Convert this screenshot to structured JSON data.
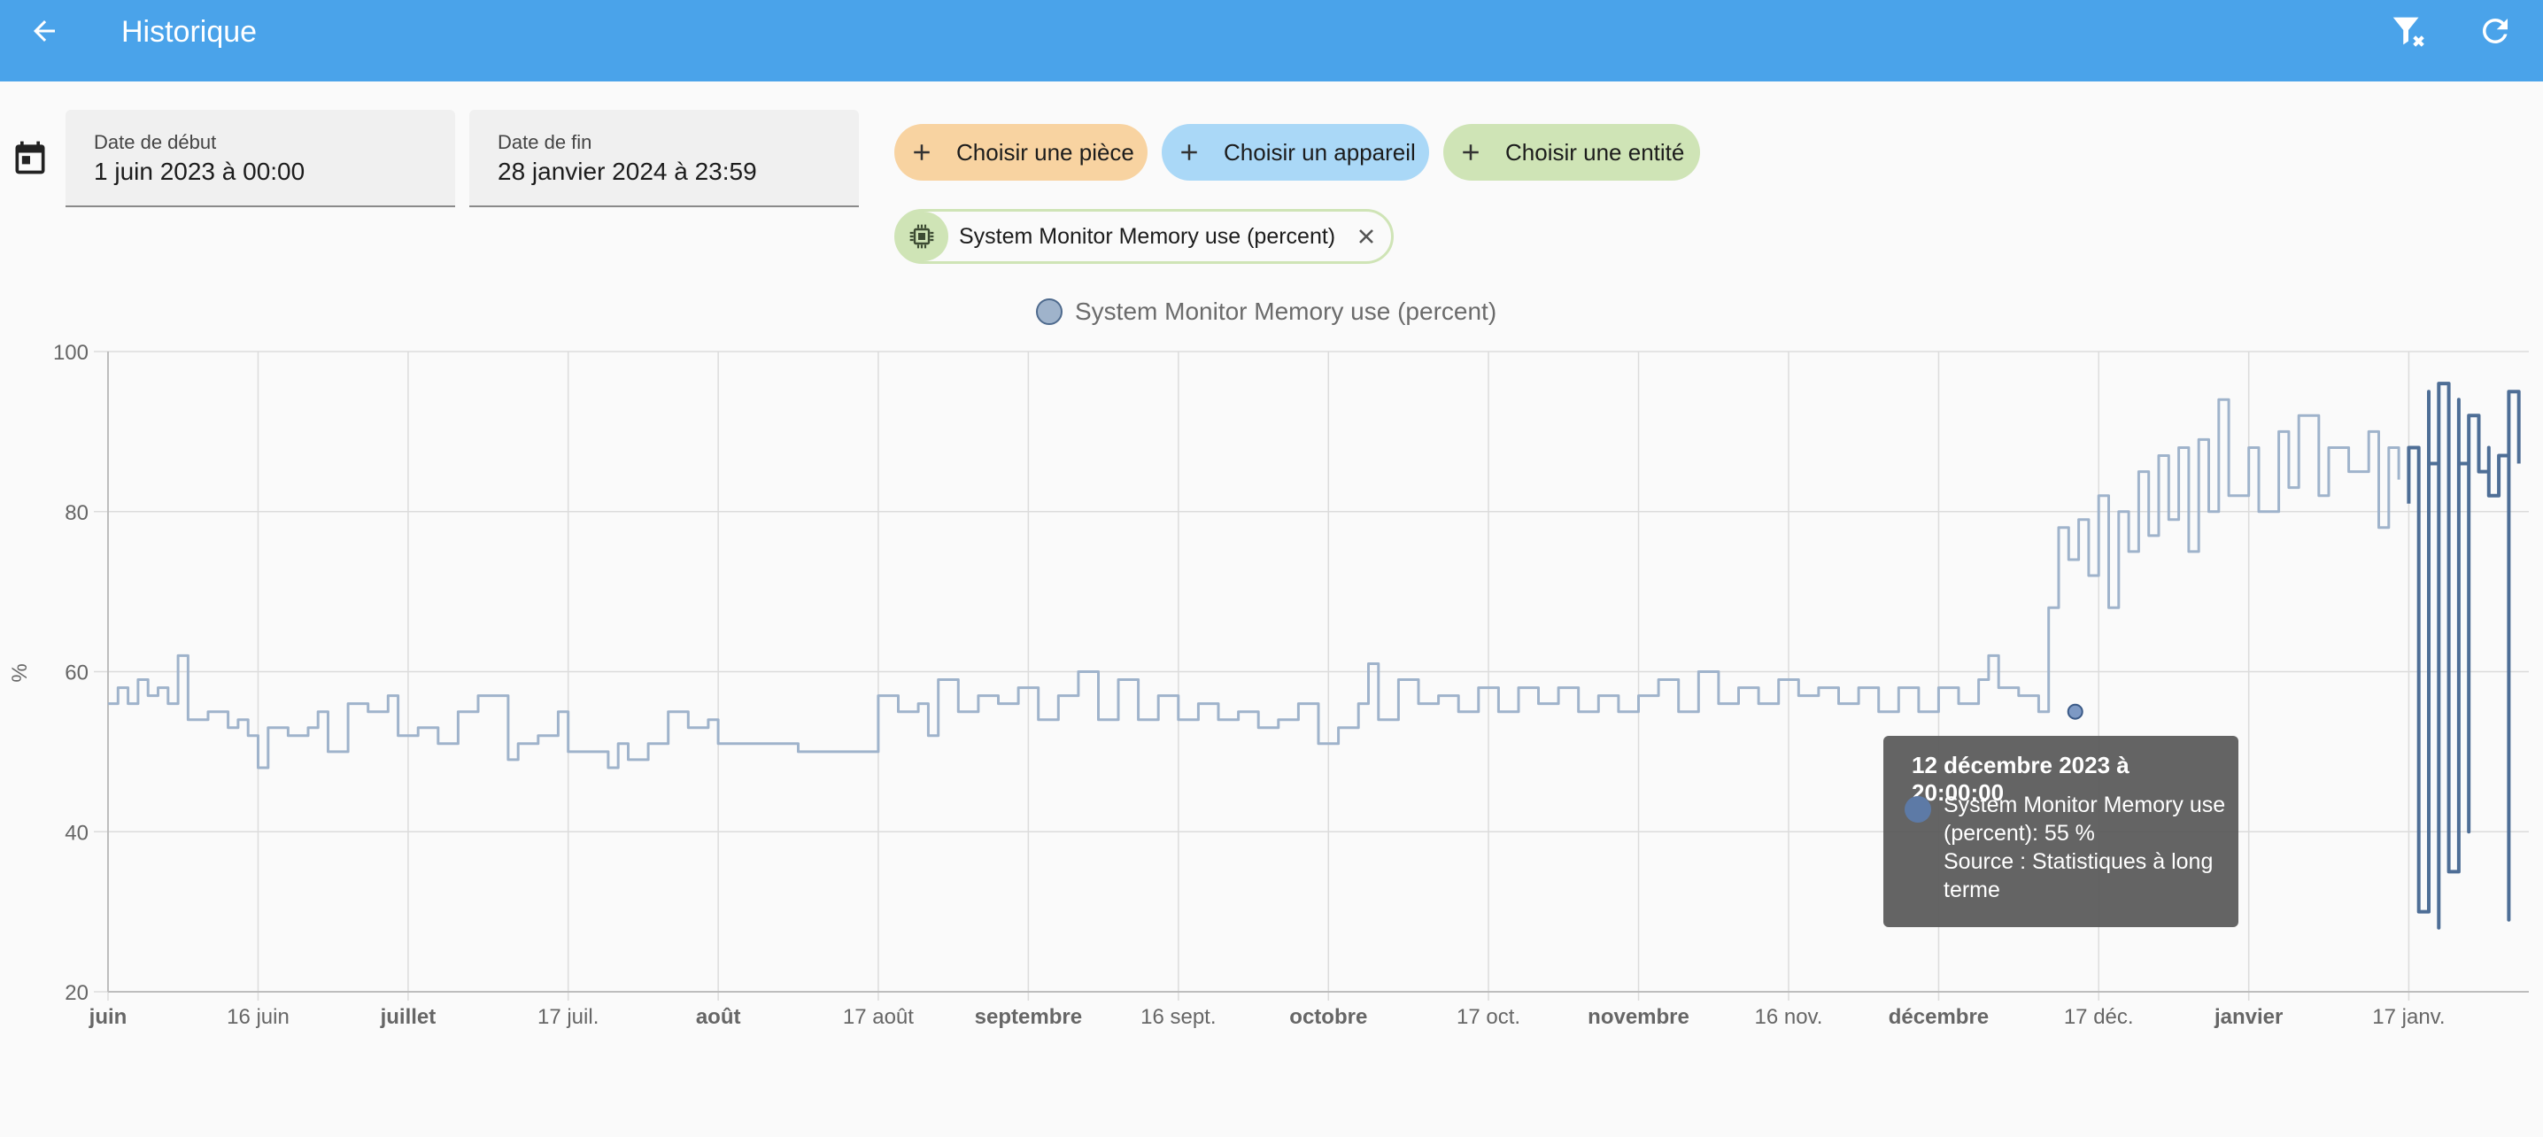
{
  "app": {
    "title": "Historique",
    "accent_color": "#4aa3ea",
    "icons": {
      "back": "arrow-left-icon",
      "clear_filter": "filter-remove-icon",
      "refresh": "refresh-icon",
      "calendar": "calendar-icon"
    }
  },
  "filters": {
    "start": {
      "label": "Date de début",
      "value": "1 juin 2023 à 00:00"
    },
    "end": {
      "label": "Date de fin",
      "value": "28 janvier 2024 à 23:59"
    },
    "pickers": {
      "room": "Choisir une pièce",
      "device": "Choisir un appareil",
      "entity": "Choisir une entité"
    },
    "selected_entity": {
      "label": "System Monitor Memory use (percent)",
      "icon": "chip-icon"
    }
  },
  "chart_data": {
    "type": "line",
    "legend": [
      "System Monitor Memory use (percent)"
    ],
    "legend_position": "top-center",
    "ylabel": "%",
    "ylim": [
      20,
      100
    ],
    "yticks": [
      20,
      40,
      60,
      80,
      100
    ],
    "xlim": [
      "2023-06-01",
      "2024-01-28"
    ],
    "grid": true,
    "xticks": [
      {
        "date": "2023-06-01",
        "label": "juin",
        "bold": true
      },
      {
        "date": "2023-06-16",
        "label": "16 juin",
        "bold": false
      },
      {
        "date": "2023-07-01",
        "label": "juillet",
        "bold": true
      },
      {
        "date": "2023-07-17",
        "label": "17 juil.",
        "bold": false
      },
      {
        "date": "2023-08-01",
        "label": "août",
        "bold": true
      },
      {
        "date": "2023-08-17",
        "label": "17 août",
        "bold": false
      },
      {
        "date": "2023-09-01",
        "label": "septembre",
        "bold": true
      },
      {
        "date": "2023-09-16",
        "label": "16 sept.",
        "bold": false
      },
      {
        "date": "2023-10-01",
        "label": "octobre",
        "bold": true
      },
      {
        "date": "2023-10-17",
        "label": "17 oct.",
        "bold": false
      },
      {
        "date": "2023-11-01",
        "label": "novembre",
        "bold": true
      },
      {
        "date": "2023-11-16",
        "label": "16 nov.",
        "bold": false
      },
      {
        "date": "2023-12-01",
        "label": "décembre",
        "bold": true
      },
      {
        "date": "2023-12-17",
        "label": "17 déc.",
        "bold": false
      },
      {
        "date": "2024-01-01",
        "label": "janvier",
        "bold": true
      },
      {
        "date": "2024-01-17",
        "label": "17 janv.",
        "bold": false
      }
    ],
    "series": [
      {
        "name": "System Monitor Memory use (percent)",
        "color": "#9fb3cb",
        "points": [
          [
            "2023-06-01",
            56
          ],
          [
            "2023-06-02",
            58
          ],
          [
            "2023-06-03",
            56
          ],
          [
            "2023-06-04",
            59
          ],
          [
            "2023-06-05",
            57
          ],
          [
            "2023-06-06",
            58
          ],
          [
            "2023-06-07",
            56
          ],
          [
            "2023-06-08",
            62
          ],
          [
            "2023-06-09",
            54
          ],
          [
            "2023-06-11",
            55
          ],
          [
            "2023-06-13",
            53
          ],
          [
            "2023-06-14",
            54
          ],
          [
            "2023-06-15",
            52
          ],
          [
            "2023-06-16",
            48
          ],
          [
            "2023-06-17",
            53
          ],
          [
            "2023-06-19",
            52
          ],
          [
            "2023-06-21",
            53
          ],
          [
            "2023-06-22",
            55
          ],
          [
            "2023-06-23",
            50
          ],
          [
            "2023-06-25",
            56
          ],
          [
            "2023-06-27",
            55
          ],
          [
            "2023-06-29",
            57
          ],
          [
            "2023-06-30",
            52
          ],
          [
            "2023-07-02",
            53
          ],
          [
            "2023-07-04",
            51
          ],
          [
            "2023-07-06",
            55
          ],
          [
            "2023-07-08",
            57
          ],
          [
            "2023-07-10",
            57
          ],
          [
            "2023-07-11",
            49
          ],
          [
            "2023-07-12",
            51
          ],
          [
            "2023-07-14",
            52
          ],
          [
            "2023-07-16",
            55
          ],
          [
            "2023-07-17",
            50
          ],
          [
            "2023-07-19",
            50
          ],
          [
            "2023-07-21",
            48
          ],
          [
            "2023-07-22",
            51
          ],
          [
            "2023-07-23",
            49
          ],
          [
            "2023-07-25",
            51
          ],
          [
            "2023-07-27",
            55
          ],
          [
            "2023-07-29",
            53
          ],
          [
            "2023-07-31",
            54
          ],
          [
            "2023-08-01",
            51
          ],
          [
            "2023-08-08",
            51
          ],
          [
            "2023-08-09",
            50
          ],
          [
            "2023-08-17",
            50
          ],
          [
            "2023-08-17",
            57
          ],
          [
            "2023-08-19",
            55
          ],
          [
            "2023-08-21",
            56
          ],
          [
            "2023-08-22",
            52
          ],
          [
            "2023-08-23",
            59
          ],
          [
            "2023-08-25",
            55
          ],
          [
            "2023-08-27",
            57
          ],
          [
            "2023-08-29",
            56
          ],
          [
            "2023-08-31",
            58
          ],
          [
            "2023-09-02",
            54
          ],
          [
            "2023-09-04",
            57
          ],
          [
            "2023-09-06",
            60
          ],
          [
            "2023-09-08",
            54
          ],
          [
            "2023-09-10",
            59
          ],
          [
            "2023-09-12",
            54
          ],
          [
            "2023-09-14",
            57
          ],
          [
            "2023-09-16",
            54
          ],
          [
            "2023-09-18",
            56
          ],
          [
            "2023-09-20",
            54
          ],
          [
            "2023-09-22",
            55
          ],
          [
            "2023-09-24",
            53
          ],
          [
            "2023-09-26",
            54
          ],
          [
            "2023-09-28",
            56
          ],
          [
            "2023-09-30",
            51
          ],
          [
            "2023-10-02",
            53
          ],
          [
            "2023-10-04",
            56
          ],
          [
            "2023-10-05",
            61
          ],
          [
            "2023-10-06",
            54
          ],
          [
            "2023-10-08",
            59
          ],
          [
            "2023-10-10",
            56
          ],
          [
            "2023-10-12",
            57
          ],
          [
            "2023-10-14",
            55
          ],
          [
            "2023-10-16",
            58
          ],
          [
            "2023-10-18",
            55
          ],
          [
            "2023-10-20",
            58
          ],
          [
            "2023-10-22",
            56
          ],
          [
            "2023-10-24",
            58
          ],
          [
            "2023-10-26",
            55
          ],
          [
            "2023-10-28",
            57
          ],
          [
            "2023-10-30",
            55
          ],
          [
            "2023-11-01",
            57
          ],
          [
            "2023-11-03",
            59
          ],
          [
            "2023-11-05",
            55
          ],
          [
            "2023-11-07",
            60
          ],
          [
            "2023-11-09",
            56
          ],
          [
            "2023-11-11",
            58
          ],
          [
            "2023-11-13",
            56
          ],
          [
            "2023-11-15",
            59
          ],
          [
            "2023-11-17",
            57
          ],
          [
            "2023-11-19",
            58
          ],
          [
            "2023-11-21",
            56
          ],
          [
            "2023-11-23",
            58
          ],
          [
            "2023-11-25",
            55
          ],
          [
            "2023-11-27",
            58
          ],
          [
            "2023-11-29",
            55
          ],
          [
            "2023-12-01",
            58
          ],
          [
            "2023-12-03",
            56
          ],
          [
            "2023-12-05",
            59
          ],
          [
            "2023-12-06",
            62
          ],
          [
            "2023-12-07",
            58
          ],
          [
            "2023-12-09",
            57
          ],
          [
            "2023-12-11",
            55
          ],
          [
            "2023-12-12",
            55
          ],
          [
            "2023-12-12",
            68
          ],
          [
            "2023-12-13",
            78
          ],
          [
            "2023-12-14",
            74
          ],
          [
            "2023-12-15",
            79
          ],
          [
            "2023-12-16",
            72
          ],
          [
            "2023-12-17",
            82
          ],
          [
            "2023-12-18",
            68
          ],
          [
            "2023-12-19",
            80
          ],
          [
            "2023-12-20",
            75
          ],
          [
            "2023-12-21",
            85
          ],
          [
            "2023-12-22",
            77
          ],
          [
            "2023-12-23",
            87
          ],
          [
            "2023-12-24",
            79
          ],
          [
            "2023-12-25",
            88
          ],
          [
            "2023-12-26",
            75
          ],
          [
            "2023-12-27",
            89
          ],
          [
            "2023-12-28",
            80
          ],
          [
            "2023-12-29",
            94
          ],
          [
            "2023-12-30",
            82
          ],
          [
            "2024-01-01",
            88
          ],
          [
            "2024-01-02",
            80
          ],
          [
            "2024-01-04",
            90
          ],
          [
            "2024-01-05",
            83
          ],
          [
            "2024-01-06",
            92
          ],
          [
            "2024-01-08",
            82
          ],
          [
            "2024-01-09",
            88
          ],
          [
            "2024-01-11",
            85
          ],
          [
            "2024-01-13",
            90
          ],
          [
            "2024-01-14",
            78
          ],
          [
            "2024-01-15",
            88
          ],
          [
            "2024-01-16",
            84
          ]
        ]
      },
      {
        "name": "System Monitor Memory use (percent)",
        "color": "#4e6e96",
        "points": [
          [
            "2024-01-17",
            81
          ],
          [
            "2024-01-17",
            88
          ],
          [
            "2024-01-18",
            85
          ],
          [
            "2024-01-18",
            30
          ],
          [
            "2024-01-19",
            95
          ],
          [
            "2024-01-19",
            86
          ],
          [
            "2024-01-20",
            28
          ],
          [
            "2024-01-20",
            96
          ],
          [
            "2024-01-21",
            84
          ],
          [
            "2024-01-21",
            35
          ],
          [
            "2024-01-22",
            94
          ],
          [
            "2024-01-22",
            86
          ],
          [
            "2024-01-23",
            40
          ],
          [
            "2024-01-23",
            92
          ],
          [
            "2024-01-24",
            85
          ],
          [
            "2024-01-25",
            88
          ],
          [
            "2024-01-25",
            82
          ],
          [
            "2024-01-26",
            87
          ],
          [
            "2024-01-27",
            29
          ],
          [
            "2024-01-27",
            95
          ],
          [
            "2024-01-28",
            86
          ]
        ]
      }
    ],
    "highlight": {
      "date": "2023-12-12",
      "value": 55
    },
    "tooltip": {
      "title": "12 décembre 2023 à 20:00:00",
      "line1": "System Monitor Memory use",
      "line2": "(percent): 55 %",
      "line3": "Source : Statistiques à long",
      "line4": "terme"
    }
  }
}
